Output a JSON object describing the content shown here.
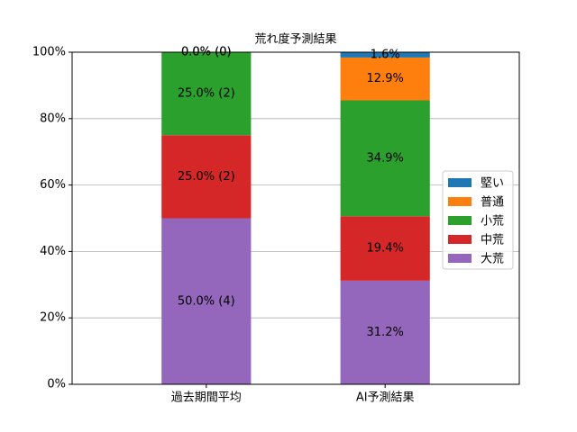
{
  "chart_data": {
    "type": "stacked_bar",
    "title": "荒れ度予測結果",
    "categories": [
      "過去期間平均",
      "AI予測結果"
    ],
    "series": [
      {
        "name": "堅い",
        "color": "#1f77b4",
        "values": [
          0.0,
          1.6
        ],
        "value_labels": [
          "0.0% (0)",
          "1.6%"
        ]
      },
      {
        "name": "普通",
        "color": "#ff7f0e",
        "values": [
          0.0,
          12.9
        ],
        "value_labels": [
          "0.0% (0)",
          "12.9%"
        ]
      },
      {
        "name": "小荒",
        "color": "#2ca02c",
        "values": [
          25.0,
          34.9
        ],
        "value_labels": [
          "25.0% (2)",
          "34.9%"
        ]
      },
      {
        "name": "中荒",
        "color": "#d62728",
        "values": [
          25.0,
          19.4
        ],
        "value_labels": [
          "25.0% (2)",
          "19.4%"
        ]
      },
      {
        "name": "大荒",
        "color": "#9467bd",
        "values": [
          50.0,
          31.2
        ],
        "value_labels": [
          "50.0% (4)",
          "31.2%"
        ]
      }
    ],
    "ylim": [
      0,
      100
    ],
    "yticks": [
      {
        "value": 0,
        "label": "0%"
      },
      {
        "value": 20,
        "label": "20%"
      },
      {
        "value": 40,
        "label": "40%"
      },
      {
        "value": 60,
        "label": "60%"
      },
      {
        "value": 80,
        "label": "80%"
      },
      {
        "value": 100,
        "label": "100%"
      }
    ],
    "grid": true,
    "legend": "right"
  }
}
